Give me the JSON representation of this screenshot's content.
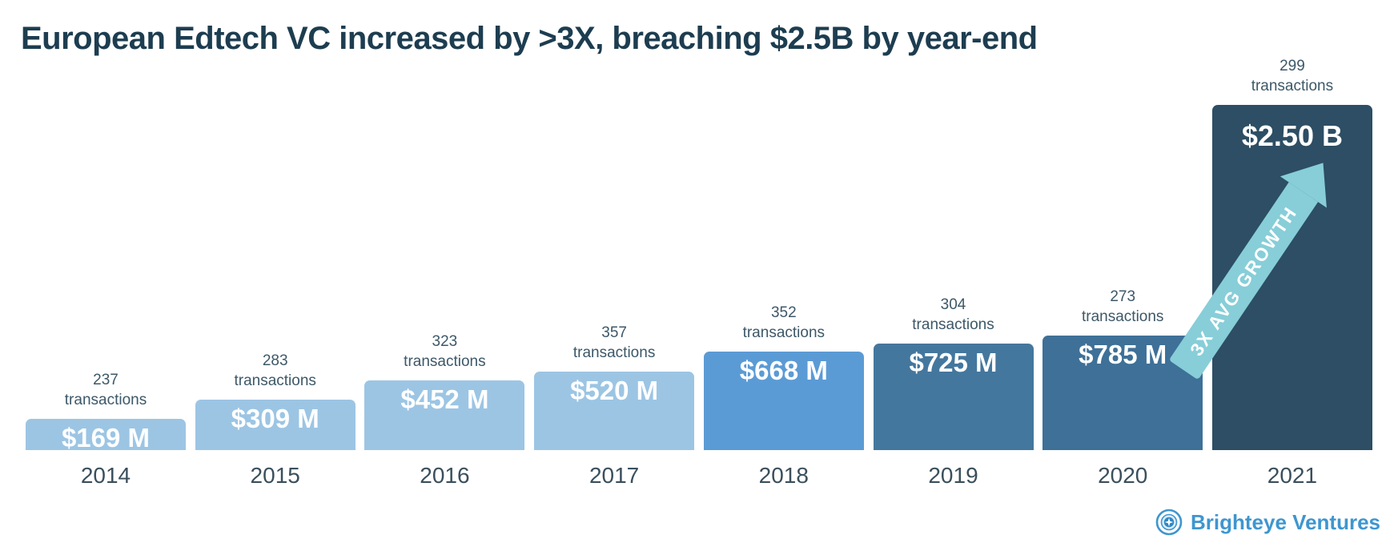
{
  "page": {
    "title": "European Edtech VC increased by >3X, breaching $2.5B by year-end"
  },
  "chart_data": {
    "type": "bar",
    "title": "European Edtech VC increased by >3X, breaching $2.5B by year-end",
    "categories": [
      "2014",
      "2015",
      "2016",
      "2017",
      "2018",
      "2019",
      "2020",
      "2021"
    ],
    "series": [
      {
        "name": "VC funding (USD millions)",
        "values": [
          169,
          309,
          452,
          520,
          668,
          725,
          785,
          2500
        ]
      },
      {
        "name": "Transactions",
        "values": [
          237,
          283,
          323,
          357,
          352,
          304,
          273,
          299
        ]
      }
    ],
    "value_labels": [
      "$169 M",
      "$309 M",
      "$452 M",
      "$520 M",
      "$668 M",
      "$725 M",
      "$785 M",
      "$2.50 B"
    ],
    "transactions_word": "transactions",
    "bar_colors": [
      "#9cc5e4",
      "#9cc5e4",
      "#9cc5e4",
      "#9cc5e4",
      "#5b9bd5",
      "#44779e",
      "#3e7098",
      "#2d4e64"
    ],
    "annotation": {
      "text": "3X AVG GROWTH",
      "color": "#87ced8"
    },
    "xlabel": "",
    "ylabel": "",
    "ylim": [
      0,
      2500
    ],
    "grid": false,
    "legend": false
  },
  "footer": {
    "brand": "Brighteye Ventures",
    "brand_color": "#3e96cf"
  }
}
